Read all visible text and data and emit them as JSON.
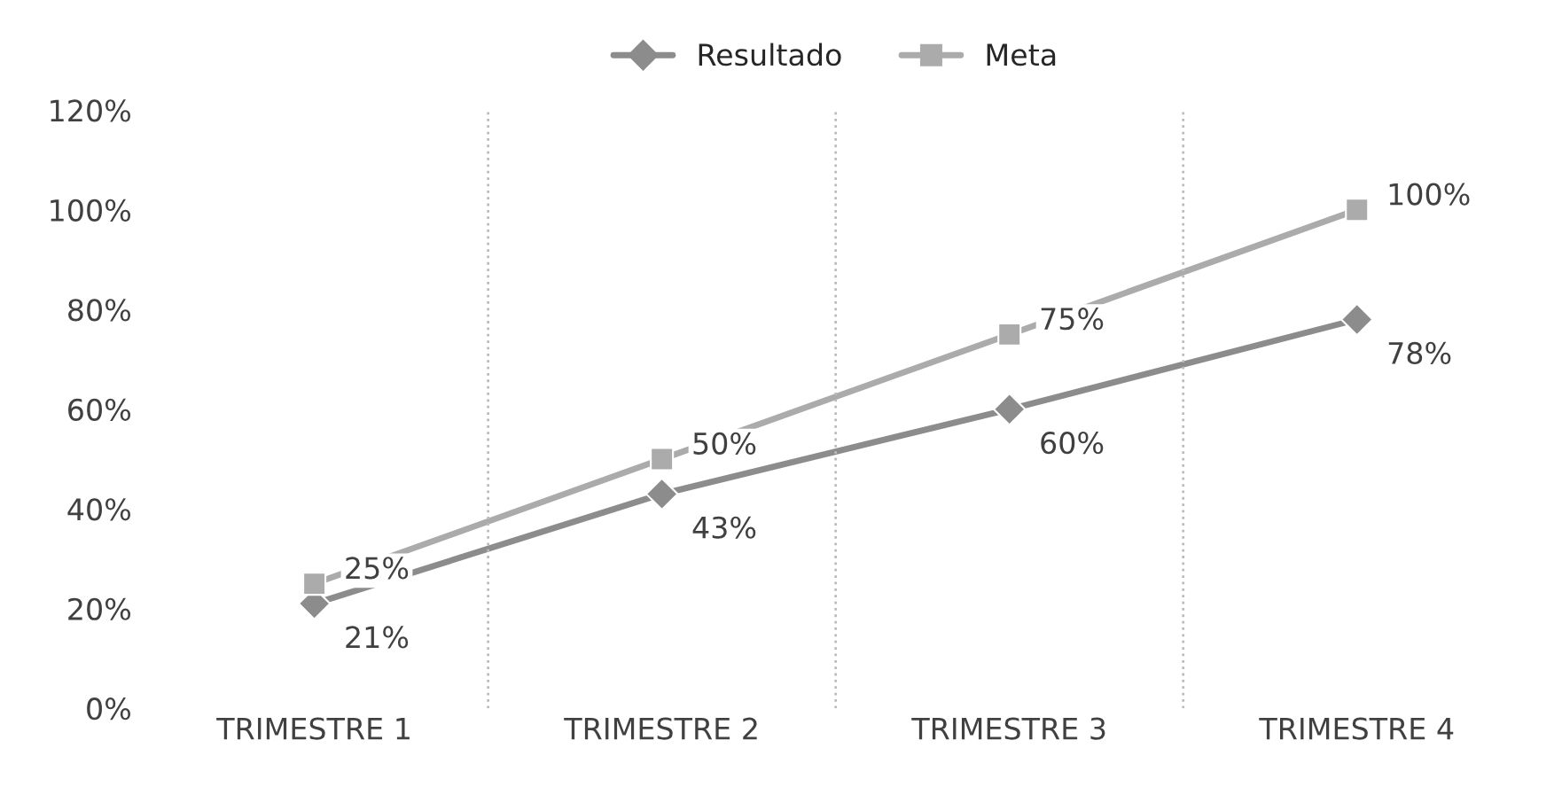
{
  "chart_data": {
    "type": "line",
    "categories": [
      "TRIMESTRE 1",
      "TRIMESTRE 2",
      "TRIMESTRE 3",
      "TRIMESTRE 4"
    ],
    "series": [
      {
        "name": "Resultado",
        "color": "#8c8c8c",
        "marker": "diamond",
        "values": [
          21,
          43,
          60,
          78
        ],
        "value_labels": [
          "21%",
          "43%",
          "60%",
          "78%"
        ]
      },
      {
        "name": "Meta",
        "color": "#ababab",
        "marker": "square",
        "values": [
          25,
          50,
          75,
          100
        ],
        "value_labels": [
          "25%",
          "50%",
          "75%",
          "100%"
        ]
      }
    ],
    "ylim": [
      0,
      120
    ],
    "yticks": [
      {
        "value": 0,
        "label": "0%"
      },
      {
        "value": 20,
        "label": "20%"
      },
      {
        "value": 40,
        "label": "40%"
      },
      {
        "value": 60,
        "label": "60%"
      },
      {
        "value": 80,
        "label": "80%"
      },
      {
        "value": 100,
        "label": "100%"
      },
      {
        "value": 120,
        "label": "120%"
      }
    ],
    "grid": "x",
    "legend": "top",
    "line_style": "solid"
  }
}
